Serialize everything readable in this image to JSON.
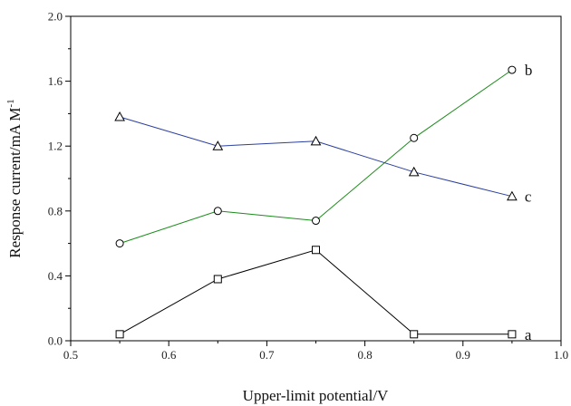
{
  "chart_data": {
    "type": "line",
    "title": "",
    "xlabel": "Upper-limit potential/V",
    "ylabel": "Response current/mA M",
    "ylabel_superscript": "-1",
    "xlim": [
      0.5,
      1.0
    ],
    "ylim": [
      0.0,
      2.0
    ],
    "x_ticks": [
      "0.5",
      "0.6",
      "0.7",
      "0.8",
      "0.9",
      "1.0"
    ],
    "y_ticks": [
      "0.0",
      "0.4",
      "0.8",
      "1.2",
      "1.6",
      "2.0"
    ],
    "grid": false,
    "x": [
      0.55,
      0.65,
      0.75,
      0.85,
      0.95
    ],
    "series": [
      {
        "name": "a",
        "marker": "square",
        "color": "#000000",
        "values": [
          0.04,
          0.38,
          0.56,
          0.04,
          0.04
        ]
      },
      {
        "name": "b",
        "marker": "circle",
        "color": "#1a8a1a",
        "values": [
          0.6,
          0.8,
          0.74,
          1.25,
          1.67
        ]
      },
      {
        "name": "c",
        "marker": "triangle",
        "color": "#2b3f9e",
        "values": [
          1.38,
          1.2,
          1.23,
          1.04,
          0.89
        ]
      }
    ]
  }
}
